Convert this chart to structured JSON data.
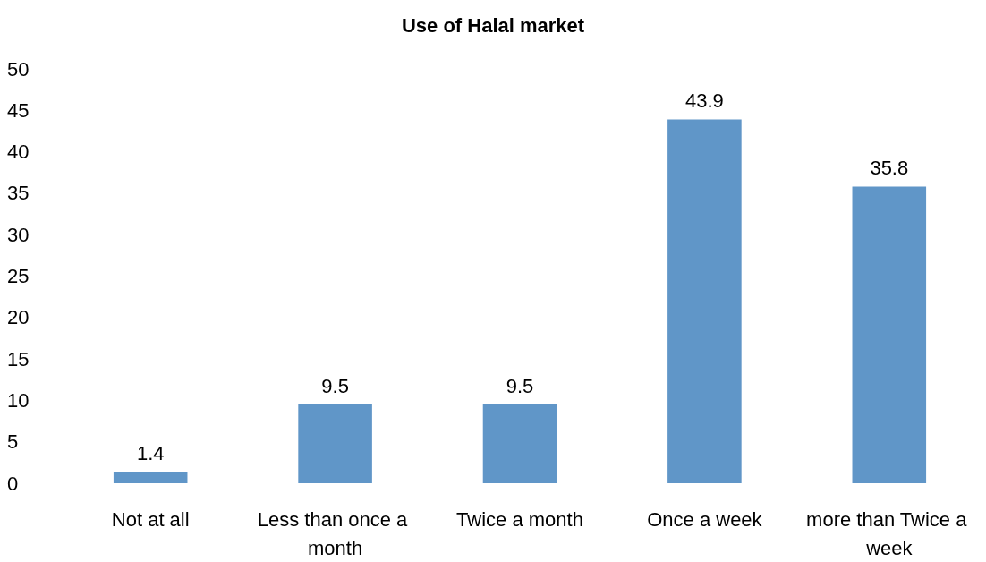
{
  "chart_data": {
    "type": "bar",
    "title": "Use of Halal market",
    "categories": [
      "Not at all",
      "Less than once a month",
      "Twice a month",
      "Once a week",
      "more than Twice a week"
    ],
    "values": [
      1.4,
      9.5,
      9.5,
      43.9,
      35.8
    ],
    "color": "#6096c8",
    "ylim": [
      0,
      50
    ],
    "yticks": [
      0,
      5,
      10,
      15,
      20,
      25,
      30,
      35,
      40,
      45,
      50
    ],
    "grid": false,
    "data_labels": true
  }
}
